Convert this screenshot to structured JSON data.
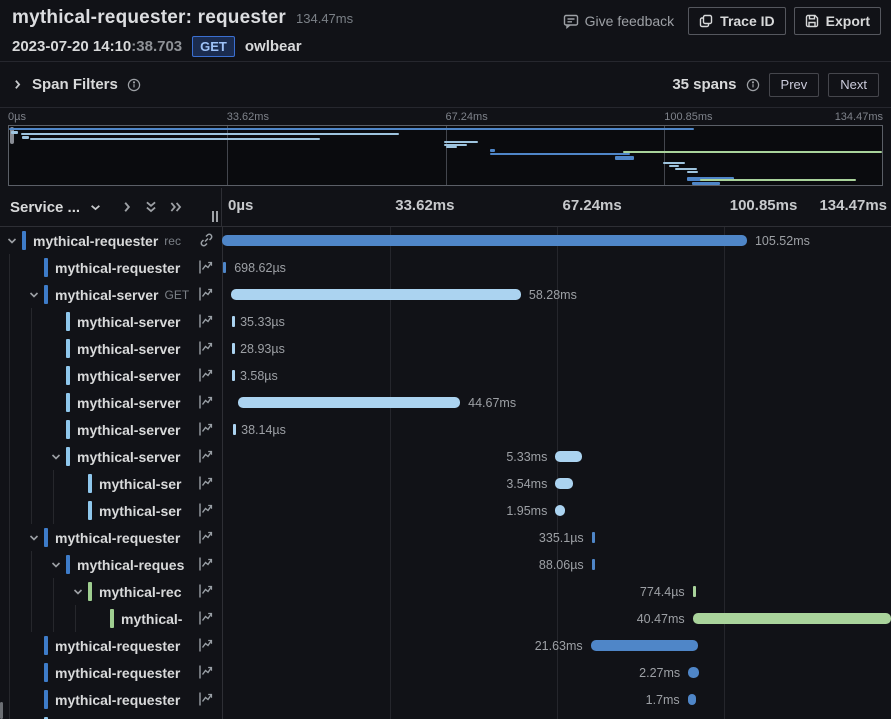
{
  "colors": {
    "background": "#111217",
    "bar_blue": "#4f86c8",
    "bar_light_blue": "#abd3f0",
    "bar_green": "#a9d39b",
    "service_blue": "#3e7cc9",
    "service_light_blue": "#8fc7ec",
    "service_green": "#9fce90",
    "badge_border": "#3b6fd1",
    "badge_text": "#9ec2f7"
  },
  "header": {
    "title": "mythical-requester: requester",
    "duration": "134.47ms",
    "timestamp_strong": "2023-07-20 14:10",
    "timestamp_rest": ":38.703",
    "method": "GET",
    "resource": "owlbear",
    "feedback_label": "Give feedback",
    "trace_id_label": "Trace ID",
    "export_label": "Export"
  },
  "filters": {
    "toggle_label": "Span Filters",
    "count": "35 spans",
    "prev_label": "Prev",
    "next_label": "Next"
  },
  "minimap": {
    "total_ms": 134.47,
    "axis": [
      "0µs",
      "33.62ms",
      "67.24ms",
      "100.85ms",
      "134.47ms"
    ],
    "spans": [
      {
        "t": 2,
        "s": 0,
        "e": 105.5,
        "c": "blue",
        "h": 2
      },
      {
        "t": 5,
        "s": 0.3,
        "e": 1.4,
        "c": "light",
        "h": 3
      },
      {
        "t": 7,
        "s": 1.8,
        "e": 60.1,
        "c": "light",
        "h": 2
      },
      {
        "t": 10,
        "s": 2.0,
        "e": 3.1,
        "c": "light",
        "h": 3
      },
      {
        "t": 12,
        "s": 3.2,
        "e": 47.9,
        "c": "light",
        "h": 2
      },
      {
        "t": 15,
        "s": 67.0,
        "e": 72.3,
        "c": "light",
        "h": 2
      },
      {
        "t": 18,
        "s": 67.0,
        "e": 70.5,
        "c": "light",
        "h": 2
      },
      {
        "t": 20,
        "s": 67.3,
        "e": 69.0,
        "c": "light",
        "h": 2
      },
      {
        "t": 23,
        "s": 74.1,
        "e": 74.9,
        "c": "blue",
        "h": 3
      },
      {
        "t": 25,
        "s": 94.6,
        "e": 134.4,
        "c": "green",
        "h": 2
      },
      {
        "t": 27,
        "s": 74.1,
        "e": 95.7,
        "c": "blue",
        "h": 2
      },
      {
        "t": 30,
        "s": 93.4,
        "e": 96.2,
        "c": "blue",
        "h": 4
      },
      {
        "t": 36,
        "s": 100.8,
        "e": 104.2,
        "c": "light",
        "h": 2
      },
      {
        "t": 39,
        "s": 101.6,
        "e": 103.2,
        "c": "light",
        "h": 2
      },
      {
        "t": 42,
        "s": 102.6,
        "e": 106.0,
        "c": "light",
        "h": 2
      },
      {
        "t": 45,
        "s": 104.4,
        "e": 106.2,
        "c": "light",
        "h": 2
      },
      {
        "t": 51,
        "s": 104.4,
        "e": 111.6,
        "c": "blue",
        "h": 4
      },
      {
        "t": 53,
        "s": 106.5,
        "e": 130.5,
        "c": "green",
        "h": 2
      },
      {
        "t": 56,
        "s": 105.2,
        "e": 109.5,
        "c": "blue",
        "h": 3
      }
    ]
  },
  "waterfall": {
    "service_header": "Service ...",
    "total_ms": 134.47,
    "axis": [
      "0µs",
      "33.62ms",
      "67.24ms",
      "100.85ms",
      "134.47ms"
    ],
    "rows": [
      {
        "name": "mythical-requester",
        "sub": "rec",
        "icon": "link",
        "depth": 0,
        "expandable": true,
        "color": "blue",
        "bar": "blue",
        "start_ms": 0,
        "dur_ms": 105.52,
        "label": "105.52ms",
        "side": "right"
      },
      {
        "name": "mythical-requester",
        "sub": "",
        "icon": "chart",
        "depth": 1,
        "expandable": false,
        "color": "blue",
        "bar": "blue",
        "start_ms": 0.15,
        "dur_ms": 0.699,
        "label": "698.62µs",
        "side": "right"
      },
      {
        "name": "mythical-server",
        "sub": "GET",
        "icon": "chart",
        "depth": 1,
        "expandable": true,
        "color": "blue",
        "bar": "light",
        "start_ms": 1.8,
        "dur_ms": 58.28,
        "label": "58.28ms",
        "side": "right"
      },
      {
        "name": "mythical-server",
        "sub": "",
        "icon": "chart",
        "depth": 2,
        "expandable": false,
        "color": "light",
        "bar": "light",
        "start_ms": 2.0,
        "dur_ms": 0.035,
        "label": "35.33µs",
        "side": "right"
      },
      {
        "name": "mythical-server",
        "sub": "",
        "icon": "chart",
        "depth": 2,
        "expandable": false,
        "color": "light",
        "bar": "light",
        "start_ms": 2.0,
        "dur_ms": 0.029,
        "label": "28.93µs",
        "side": "right"
      },
      {
        "name": "mythical-server",
        "sub": "",
        "icon": "chart",
        "depth": 2,
        "expandable": false,
        "color": "light",
        "bar": "light",
        "start_ms": 2.0,
        "dur_ms": 0.004,
        "label": "3.58µs",
        "side": "right"
      },
      {
        "name": "mythical-server",
        "sub": "",
        "icon": "chart",
        "depth": 2,
        "expandable": false,
        "color": "light",
        "bar": "light",
        "start_ms": 3.2,
        "dur_ms": 44.67,
        "label": "44.67ms",
        "side": "right"
      },
      {
        "name": "mythical-server",
        "sub": "",
        "icon": "chart",
        "depth": 2,
        "expandable": false,
        "color": "light",
        "bar": "light",
        "start_ms": 2.2,
        "dur_ms": 0.038,
        "label": "38.14µs",
        "side": "right"
      },
      {
        "name": "mythical-server",
        "sub": "",
        "icon": "chart",
        "depth": 2,
        "expandable": true,
        "color": "light",
        "bar": "light",
        "start_ms": 67.0,
        "dur_ms": 5.33,
        "label": "5.33ms",
        "side": "left"
      },
      {
        "name": "mythical-ser",
        "sub": "",
        "icon": "chart",
        "depth": 3,
        "expandable": false,
        "color": "light",
        "bar": "light",
        "start_ms": 67.0,
        "dur_ms": 3.54,
        "label": "3.54ms",
        "side": "left"
      },
      {
        "name": "mythical-ser",
        "sub": "",
        "icon": "chart",
        "depth": 3,
        "expandable": false,
        "color": "light",
        "bar": "light",
        "start_ms": 67.0,
        "dur_ms": 1.95,
        "label": "1.95ms",
        "side": "left"
      },
      {
        "name": "mythical-requester",
        "sub": "",
        "icon": "chart",
        "depth": 1,
        "expandable": true,
        "color": "blue",
        "bar": "blue",
        "start_ms": 74.3,
        "dur_ms": 0.335,
        "label": "335.1µs",
        "side": "left"
      },
      {
        "name": "mythical-reques",
        "sub": "",
        "icon": "chart",
        "depth": 2,
        "expandable": true,
        "color": "blue",
        "bar": "blue",
        "start_ms": 74.3,
        "dur_ms": 0.088,
        "label": "88.06µs",
        "side": "left"
      },
      {
        "name": "mythical-rec",
        "sub": "",
        "icon": "chart",
        "depth": 3,
        "expandable": true,
        "color": "green",
        "bar": "green",
        "start_ms": 94.6,
        "dur_ms": 0.774,
        "label": "774.4µs",
        "side": "left"
      },
      {
        "name": "mythical-",
        "sub": "",
        "icon": "chart",
        "depth": 4,
        "expandable": false,
        "color": "green",
        "bar": "green",
        "start_ms": 94.6,
        "dur_ms": 40.47,
        "label": "40.47ms",
        "side": "left"
      },
      {
        "name": "mythical-requester",
        "sub": "",
        "icon": "chart",
        "depth": 1,
        "expandable": false,
        "color": "blue",
        "bar": "blue",
        "start_ms": 74.1,
        "dur_ms": 21.63,
        "label": "21.63ms",
        "side": "left"
      },
      {
        "name": "mythical-requester",
        "sub": "",
        "icon": "chart",
        "depth": 1,
        "expandable": false,
        "color": "blue",
        "bar": "blue",
        "start_ms": 93.7,
        "dur_ms": 2.27,
        "label": "2.27ms",
        "side": "left"
      },
      {
        "name": "mythical-requester",
        "sub": "",
        "icon": "chart",
        "depth": 1,
        "expandable": false,
        "color": "blue",
        "bar": "blue",
        "start_ms": 93.6,
        "dur_ms": 1.7,
        "label": "1.7ms",
        "side": "left"
      },
      {
        "name": "",
        "sub": "",
        "icon": "none",
        "depth": 1,
        "expandable": false,
        "color": "light",
        "bar": "none",
        "start_ms": 0,
        "dur_ms": 0,
        "label": "",
        "side": "right",
        "partial": true
      }
    ]
  }
}
